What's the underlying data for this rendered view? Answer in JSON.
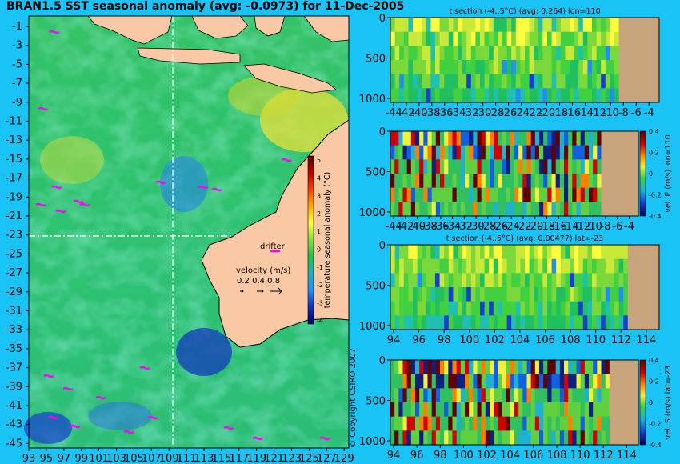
{
  "map": {
    "title": "BRAN1.5 SST seasonal anomaly (avg: -0.0973) for 11-Dec-2005",
    "lat_ticks": [
      "-1",
      "-3",
      "-5",
      "-7",
      "-9",
      "-11",
      "-13",
      "-15",
      "-17",
      "-19",
      "-21",
      "-23",
      "-25",
      "-27",
      "-29",
      "-31",
      "-33",
      "-35",
      "-37",
      "-39",
      "-41",
      "-43",
      "-45"
    ],
    "lon_ticks": [
      "93",
      "95",
      "97",
      "99",
      "101",
      "103",
      "105",
      "107",
      "109",
      "111",
      "113",
      "115",
      "117",
      "119",
      "121",
      "123",
      "125",
      "127",
      "129"
    ],
    "section_lon_tick": "110",
    "section_lat_tick": "-23",
    "colorbar_label": "temperature seasonal anomaly (°C)",
    "colorbar_ticks": [
      "5",
      "4",
      "3",
      "2",
      "1",
      "0",
      "-1",
      "-2",
      "-3",
      "-4"
    ],
    "legend": {
      "drifter_label": "drifter",
      "velocity_label": "velocity (m/s)",
      "velocity_scale": "0.2 0.4 0.8"
    },
    "colors": {
      "land": "#f9c8a4",
      "background": "#19c3f5",
      "drifter": "#ff00ff"
    }
  },
  "chart_data": [
    {
      "type": "heatmap",
      "title": "t section (-4..5°C) (avg: 0.264) lon=110",
      "xlabel": "",
      "ylabel": "",
      "x_ticks": [
        "-44",
        "-42",
        "-40",
        "-38",
        "-36",
        "-34",
        "-32",
        "-30",
        "-28",
        "-26",
        "-24",
        "-22",
        "-20",
        "-18",
        "-16",
        "-14",
        "-12",
        "-10",
        "-8",
        "-6",
        "-4"
      ],
      "y_ticks": [
        "0",
        "500",
        "1000"
      ],
      "ylim": [
        1050,
        0
      ],
      "colorbar": false
    },
    {
      "type": "heatmap",
      "title": "",
      "xlabel": "",
      "ylabel": "vel. E (m/s) lon=110",
      "x_ticks": [
        "-44",
        "-42",
        "-40",
        "-38",
        "-36",
        "-34",
        "-32",
        "-30",
        "-28",
        "-26",
        "-24",
        "-22",
        "-20",
        "-18",
        "-16",
        "-14",
        "-12",
        "-10",
        "-8",
        "-6",
        "-4"
      ],
      "y_ticks": [
        "0",
        "500",
        "1000"
      ],
      "ylim": [
        1050,
        0
      ],
      "colorbar": true,
      "colorbar_ticks": [
        "0.4",
        "0.2",
        "0",
        "-0.2",
        "-0.4"
      ],
      "colorbar_range": [
        -0.4,
        0.4
      ]
    },
    {
      "type": "heatmap",
      "title": "t section (-4..5°C) (avg: 0.00477) lat=-23",
      "xlabel": "",
      "ylabel": "",
      "x_ticks": [
        "94",
        "96",
        "98",
        "100",
        "102",
        "104",
        "106",
        "108",
        "110",
        "112",
        "114"
      ],
      "y_ticks": [
        "0",
        "500",
        "1000"
      ],
      "ylim": [
        1050,
        0
      ],
      "colorbar": false
    },
    {
      "type": "heatmap",
      "title": "",
      "xlabel": "",
      "ylabel": "vel. S (m/s) lat=-23",
      "x_ticks": [
        "94",
        "96",
        "98",
        "100",
        "102",
        "104",
        "106",
        "108",
        "110",
        "112",
        "114"
      ],
      "y_ticks": [
        "0",
        "500",
        "1000"
      ],
      "ylim": [
        1050,
        0
      ],
      "colorbar": true,
      "colorbar_ticks": [
        "0.4",
        "0.2",
        "0",
        "-0.2",
        "-0.4"
      ],
      "colorbar_range": [
        -0.4,
        0.4
      ]
    }
  ],
  "copyright": "© Copyright CSIRO 2007"
}
